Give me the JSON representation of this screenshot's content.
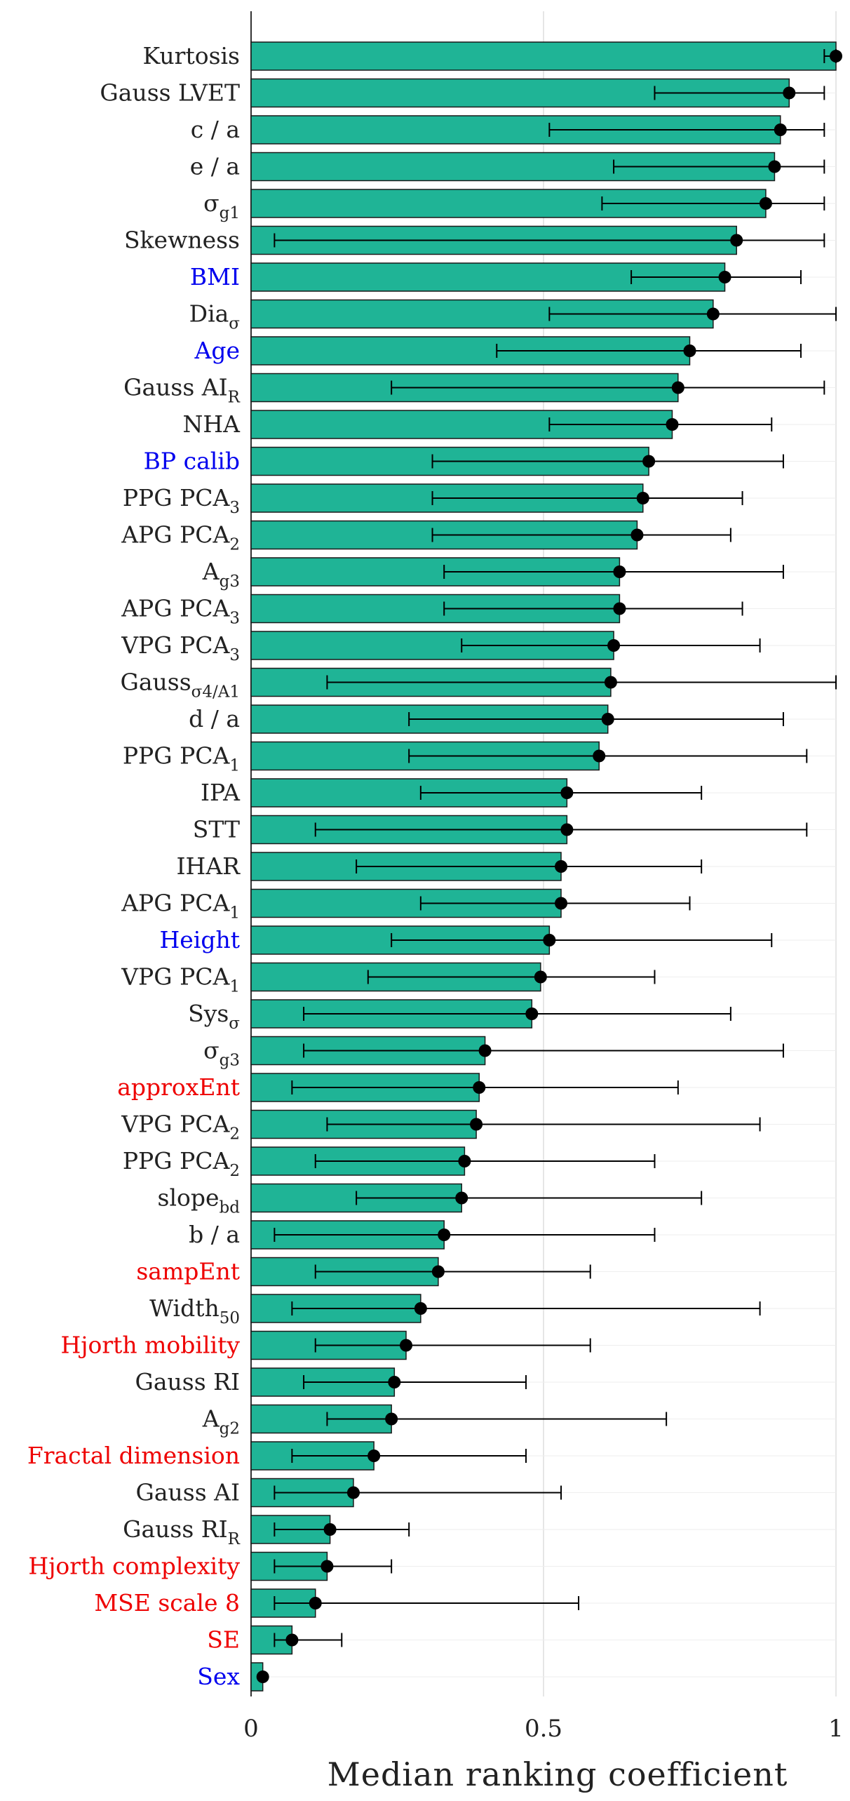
{
  "chart_data": {
    "type": "bar",
    "orientation": "horizontal",
    "xlabel": "Median ranking coefficient",
    "xlim": [
      0,
      1
    ],
    "xticks": [
      "0",
      "0.5",
      "1"
    ],
    "grid": true,
    "colors": {
      "bar": "#1fb496",
      "bar_edge": "#1a1a1a",
      "marker": "#000000",
      "label_default": "#222222",
      "label_blue": "#0000ee",
      "label_red": "#ee0000",
      "grid": "#dddddd"
    },
    "categories": [
      {
        "label": "Kurtosis",
        "color": "black",
        "median": 1.0,
        "lower": 0.98,
        "upper": 1.0
      },
      {
        "label": "Gauss LVET",
        "color": "black",
        "median": 0.92,
        "lower": 0.69,
        "upper": 0.98
      },
      {
        "label": "c / a",
        "color": "black",
        "median": 0.905,
        "lower": 0.51,
        "upper": 0.98
      },
      {
        "label": "e / a",
        "color": "black",
        "median": 0.895,
        "lower": 0.62,
        "upper": 0.98
      },
      {
        "label": "σ",
        "sub": "g1",
        "color": "black",
        "median": 0.88,
        "lower": 0.6,
        "upper": 0.98
      },
      {
        "label": "Skewness",
        "color": "black",
        "median": 0.83,
        "lower": 0.04,
        "upper": 0.98
      },
      {
        "label": "BMI",
        "color": "blue",
        "median": 0.81,
        "lower": 0.65,
        "upper": 0.94
      },
      {
        "label": "Dia",
        "sub": "σ",
        "color": "black",
        "median": 0.79,
        "lower": 0.51,
        "upper": 1.0
      },
      {
        "label": "Age",
        "color": "blue",
        "median": 0.75,
        "lower": 0.42,
        "upper": 0.94
      },
      {
        "label": "Gauss AI",
        "sub": "R",
        "color": "black",
        "median": 0.73,
        "lower": 0.24,
        "upper": 0.98
      },
      {
        "label": "NHA",
        "color": "black",
        "median": 0.72,
        "lower": 0.51,
        "upper": 0.89
      },
      {
        "label": "BP calib",
        "color": "blue",
        "median": 0.68,
        "lower": 0.31,
        "upper": 0.91
      },
      {
        "label": "PPG PCA",
        "sub": "3",
        "color": "black",
        "median": 0.67,
        "lower": 0.31,
        "upper": 0.84
      },
      {
        "label": "APG PCA",
        "sub": "2",
        "color": "black",
        "median": 0.66,
        "lower": 0.31,
        "upper": 0.82
      },
      {
        "label": "A",
        "sub": "g3",
        "color": "black",
        "median": 0.63,
        "lower": 0.33,
        "upper": 0.91
      },
      {
        "label": "APG PCA",
        "sub": "3",
        "color": "black",
        "median": 0.63,
        "lower": 0.33,
        "upper": 0.84
      },
      {
        "label": "VPG PCA",
        "sub": "3",
        "color": "black",
        "median": 0.62,
        "lower": 0.36,
        "upper": 0.87
      },
      {
        "label": "Gauss",
        "sub": "σ4/A1",
        "color": "black",
        "median": 0.615,
        "lower": 0.13,
        "upper": 1.0
      },
      {
        "label": "d / a",
        "color": "black",
        "median": 0.61,
        "lower": 0.27,
        "upper": 0.91
      },
      {
        "label": "PPG PCA",
        "sub": "1",
        "color": "black",
        "median": 0.595,
        "lower": 0.27,
        "upper": 0.95
      },
      {
        "label": "IPA",
        "color": "black",
        "median": 0.54,
        "lower": 0.29,
        "upper": 0.77
      },
      {
        "label": "STT",
        "color": "black",
        "median": 0.54,
        "lower": 0.11,
        "upper": 0.95
      },
      {
        "label": "IHAR",
        "color": "black",
        "median": 0.53,
        "lower": 0.18,
        "upper": 0.77
      },
      {
        "label": "APG PCA",
        "sub": "1",
        "color": "black",
        "median": 0.53,
        "lower": 0.29,
        "upper": 0.75
      },
      {
        "label": "Height",
        "color": "blue",
        "median": 0.51,
        "lower": 0.24,
        "upper": 0.89
      },
      {
        "label": "VPG PCA",
        "sub": "1",
        "color": "black",
        "median": 0.495,
        "lower": 0.2,
        "upper": 0.69
      },
      {
        "label": "Sys",
        "sub": "σ",
        "color": "black",
        "median": 0.48,
        "lower": 0.09,
        "upper": 0.82
      },
      {
        "label": "σ",
        "sub": "g3",
        "color": "black",
        "median": 0.4,
        "lower": 0.09,
        "upper": 0.91
      },
      {
        "label": "approxEnt",
        "color": "red",
        "median": 0.39,
        "lower": 0.07,
        "upper": 0.73
      },
      {
        "label": "VPG PCA",
        "sub": "2",
        "color": "black",
        "median": 0.385,
        "lower": 0.13,
        "upper": 0.87
      },
      {
        "label": "PPG PCA",
        "sub": "2",
        "color": "black",
        "median": 0.365,
        "lower": 0.11,
        "upper": 0.69
      },
      {
        "label": "slope",
        "sub": "bd",
        "color": "black",
        "median": 0.36,
        "lower": 0.18,
        "upper": 0.77
      },
      {
        "label": "b / a",
        "color": "black",
        "median": 0.33,
        "lower": 0.04,
        "upper": 0.69
      },
      {
        "label": "sampEnt",
        "color": "red",
        "median": 0.32,
        "lower": 0.11,
        "upper": 0.58
      },
      {
        "label": "Width",
        "sub": "50",
        "color": "black",
        "median": 0.29,
        "lower": 0.07,
        "upper": 0.87
      },
      {
        "label": "Hjorth mobility",
        "color": "red",
        "median": 0.265,
        "lower": 0.11,
        "upper": 0.58
      },
      {
        "label": "Gauss RI",
        "color": "black",
        "median": 0.245,
        "lower": 0.09,
        "upper": 0.47
      },
      {
        "label": "A",
        "sub": "g2",
        "color": "black",
        "median": 0.24,
        "lower": 0.13,
        "upper": 0.71
      },
      {
        "label": "Fractal dimension",
        "color": "red",
        "median": 0.21,
        "lower": 0.07,
        "upper": 0.47
      },
      {
        "label": "Gauss AI",
        "color": "black",
        "median": 0.175,
        "lower": 0.04,
        "upper": 0.53
      },
      {
        "label": "Gauss RI",
        "sub": "R",
        "color": "black",
        "median": 0.135,
        "lower": 0.04,
        "upper": 0.27
      },
      {
        "label": "Hjorth complexity",
        "color": "red",
        "median": 0.13,
        "lower": 0.04,
        "upper": 0.24
      },
      {
        "label": "MSE scale 8",
        "color": "red",
        "median": 0.11,
        "lower": 0.04,
        "upper": 0.56
      },
      {
        "label": "SE",
        "color": "red",
        "median": 0.07,
        "lower": 0.04,
        "upper": 0.155
      },
      {
        "label": "Sex",
        "color": "blue",
        "median": 0.02,
        "lower": 0.02,
        "upper": 0.02
      }
    ]
  }
}
